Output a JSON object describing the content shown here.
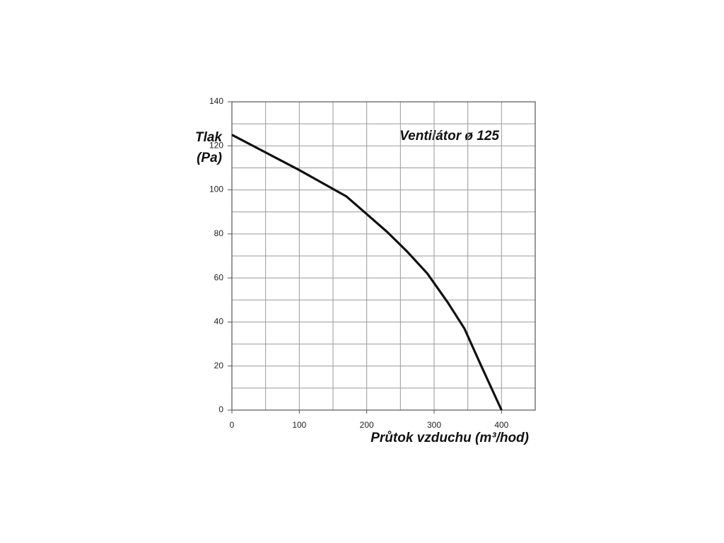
{
  "chart_data": {
    "type": "line",
    "title": "Ventilátor ø 125",
    "ylabel": [
      "Tlak",
      "(Pa)"
    ],
    "xlabel": "Průtok vzduchu (m³/hod)",
    "x": [
      0,
      50,
      100,
      170,
      200,
      230,
      260,
      290,
      320,
      345,
      370,
      400
    ],
    "series": [
      {
        "color": "#111111",
        "values": [
          125,
          117,
          109,
          97,
          89,
          81,
          72,
          62,
          49,
          37,
          20,
          0
        ]
      }
    ],
    "xlim": [
      0,
      450
    ],
    "ylim": [
      0,
      140
    ],
    "xticks": [
      0,
      100,
      200,
      300,
      400
    ],
    "yticks": [
      0,
      20,
      40,
      60,
      80,
      100,
      120,
      140
    ],
    "grid": {
      "x": 50,
      "y": 10
    }
  }
}
